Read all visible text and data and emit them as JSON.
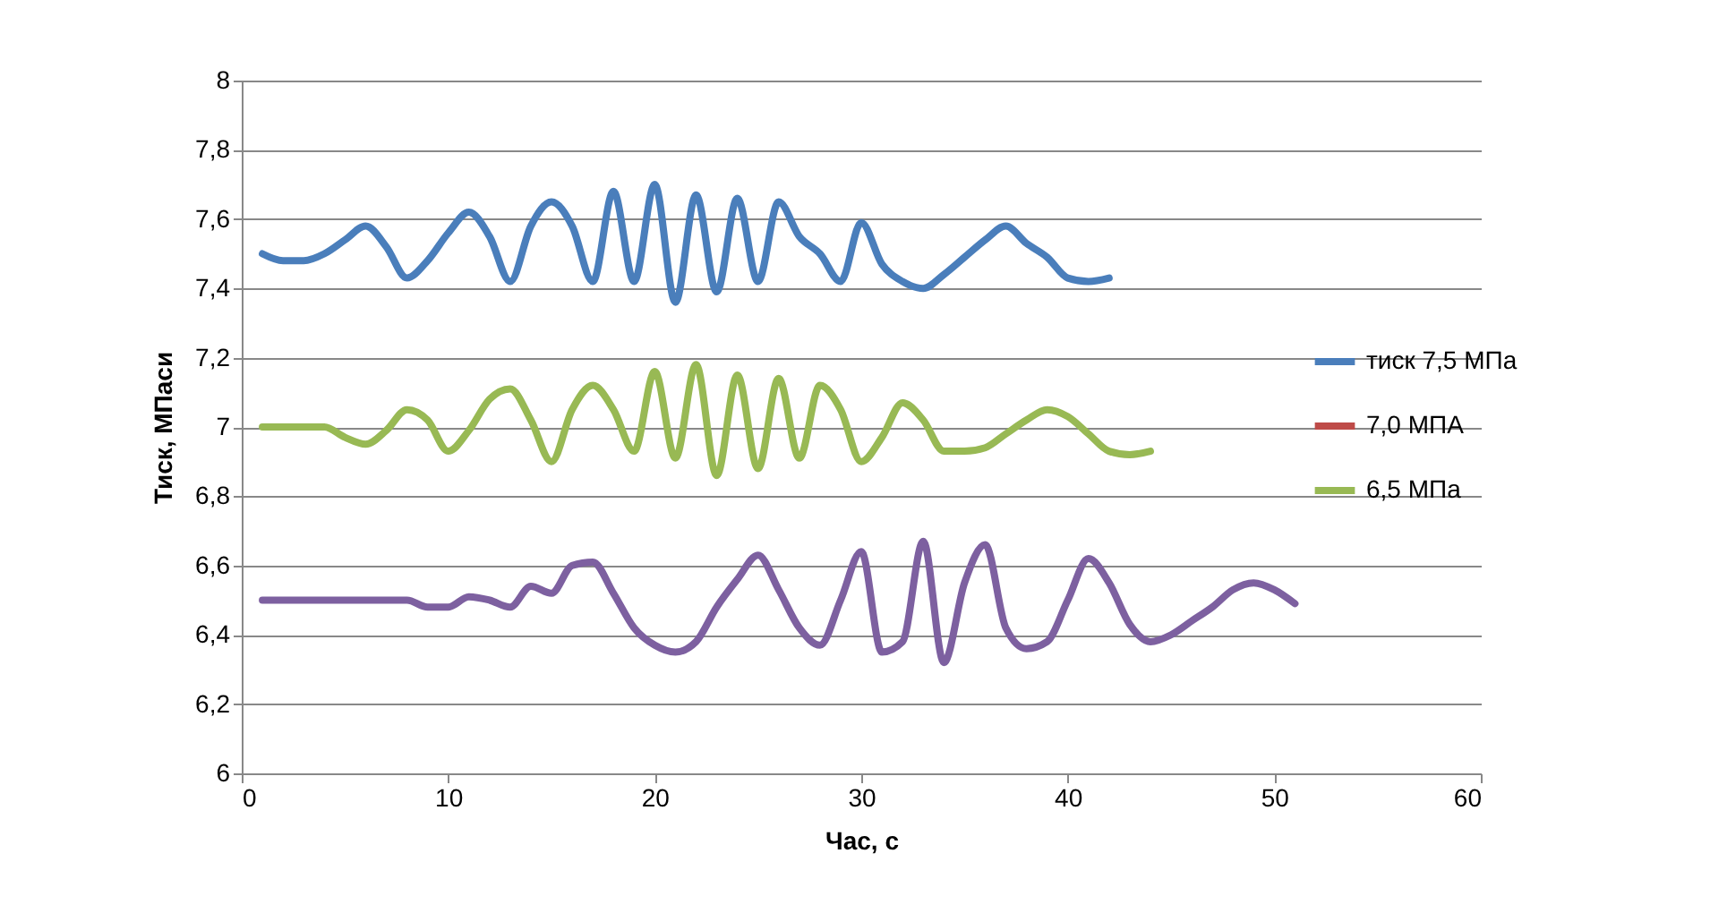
{
  "chart_data": {
    "type": "line",
    "xlabel": "Час, с",
    "ylabel": "Тиск, МПаси",
    "x": [
      1,
      2,
      3,
      4,
      5,
      6,
      7,
      8,
      9,
      10,
      11,
      12,
      13,
      14,
      15,
      16,
      17,
      18,
      19,
      20,
      21,
      22,
      23,
      24,
      25,
      26,
      27,
      28,
      29,
      30,
      31,
      32,
      33,
      34,
      35,
      36,
      37,
      38,
      39,
      40,
      41,
      42,
      43,
      44,
      45,
      46,
      47,
      48,
      49,
      50,
      51
    ],
    "series": [
      {
        "name": "тиск 7,5 МПа",
        "color": "#4a7ebb",
        "values": [
          7.5,
          7.48,
          7.48,
          7.5,
          7.54,
          7.58,
          7.52,
          7.43,
          7.48,
          7.56,
          7.62,
          7.55,
          7.42,
          7.58,
          7.65,
          7.58,
          7.42,
          7.68,
          7.42,
          7.7,
          7.36,
          7.67,
          7.39,
          7.66,
          7.42,
          7.65,
          7.55,
          7.5,
          7.42,
          7.59,
          7.47,
          7.42,
          7.4,
          7.44,
          7.49,
          7.54,
          7.58,
          7.53,
          7.49,
          7.43,
          7.42,
          7.43,
          null,
          null,
          null,
          null,
          null,
          null,
          null,
          null,
          null
        ]
      },
      {
        "name": "7,0 МПА",
        "color": "#be4b48",
        "values": [
          null,
          null,
          null,
          null,
          null,
          null,
          null,
          null,
          null,
          null,
          null,
          null,
          null,
          null,
          null,
          null,
          null,
          null,
          null,
          null,
          null,
          null,
          null,
          null,
          null,
          null,
          null,
          null,
          null,
          null,
          null,
          null,
          null,
          null,
          null,
          null,
          null,
          null,
          null,
          null,
          null,
          null,
          null,
          null,
          null,
          null,
          null,
          null,
          null,
          null,
          null
        ]
      },
      {
        "name": "6,5 МПа",
        "color": "#98b954",
        "values": [
          7.0,
          7.0,
          7.0,
          7.0,
          6.97,
          6.95,
          6.99,
          7.05,
          7.02,
          6.93,
          6.99,
          7.08,
          7.11,
          7.02,
          6.9,
          7.05,
          7.12,
          7.05,
          6.93,
          7.16,
          6.91,
          7.18,
          6.86,
          7.15,
          6.88,
          7.14,
          6.91,
          7.12,
          7.05,
          6.9,
          6.97,
          7.07,
          7.02,
          6.93,
          6.93,
          6.94,
          6.98,
          7.02,
          7.05,
          7.03,
          6.98,
          6.93,
          6.92,
          6.93,
          null,
          null,
          null,
          null,
          null,
          null,
          null
        ]
      },
      {
        "color": "#7d60a0",
        "values": [
          6.5,
          6.5,
          6.5,
          6.5,
          6.5,
          6.5,
          6.5,
          6.5,
          6.48,
          6.48,
          6.51,
          6.5,
          6.48,
          6.54,
          6.52,
          6.6,
          6.61,
          6.52,
          6.42,
          6.37,
          6.35,
          6.38,
          6.48,
          6.56,
          6.63,
          6.53,
          6.42,
          6.37,
          6.5,
          6.64,
          6.35,
          6.38,
          6.67,
          6.32,
          6.55,
          6.66,
          6.42,
          6.36,
          6.38,
          6.5,
          6.62,
          6.55,
          6.43,
          6.38,
          6.4,
          6.44,
          6.48,
          6.53,
          6.55,
          6.53,
          6.49
        ]
      }
    ],
    "xlim": [
      0,
      60
    ],
    "xticks": [
      0,
      10,
      20,
      30,
      40,
      50,
      60
    ],
    "ylim": [
      6,
      8
    ],
    "yticks": [
      6,
      {
        "value": 6.2,
        "label": "6,2"
      },
      {
        "value": 6.4,
        "label": "6,4"
      },
      {
        "value": 6.6,
        "label": "6,6"
      },
      {
        "value": 6.8,
        "label": "6,8"
      },
      7,
      {
        "value": 7.2,
        "label": "7,2"
      },
      {
        "value": 7.4,
        "label": "7,4"
      },
      {
        "value": 7.6,
        "label": "7,6"
      },
      {
        "value": 7.8,
        "label": "7,8"
      },
      8
    ],
    "grid": "y",
    "legend": "right",
    "marker": "none",
    "line_style": "solid"
  }
}
